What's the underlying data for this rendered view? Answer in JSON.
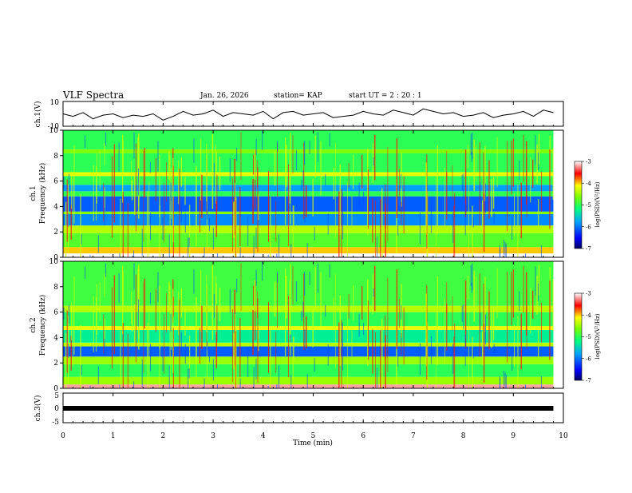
{
  "header": {
    "title": "VLF Spectra",
    "date": "Jan. 26, 2026",
    "station": "station= KAP",
    "start": "start  UT =   2 : 20 : 1"
  },
  "chart_data": [
    {
      "id": "ch1-waveform",
      "type": "line",
      "ylabel": "ch.1(V)",
      "ylim": [
        -10,
        10
      ],
      "yticks": [
        "10",
        "-10"
      ],
      "x": [
        0,
        0.2,
        0.4,
        0.6,
        0.8,
        1,
        1.2,
        1.4,
        1.6,
        1.8,
        2,
        2.2,
        2.4,
        2.6,
        2.8,
        3,
        3.2,
        3.4,
        3.6,
        3.8,
        4,
        4.2,
        4.4,
        4.6,
        4.8,
        5,
        5.2,
        5.4,
        5.6,
        5.8,
        6,
        6.2,
        6.4,
        6.6,
        6.8,
        7,
        7.2,
        7.4,
        7.6,
        7.8,
        8,
        8.2,
        8.4,
        8.6,
        8.8,
        9,
        9.2,
        9.4,
        9.6,
        9.8
      ],
      "values": [
        0,
        -2,
        1,
        -4,
        -1,
        0,
        -3,
        -1,
        -2,
        0,
        -5,
        -2,
        2,
        -1,
        0,
        3,
        -2,
        1,
        0,
        -1,
        2,
        -4,
        1,
        2,
        -1,
        0,
        1,
        -3,
        -2,
        -1,
        2,
        0,
        -1,
        3,
        1,
        -1,
        4,
        2,
        0,
        1,
        -2,
        -1,
        1,
        -3,
        -1,
        0,
        2,
        -2,
        3,
        1
      ]
    },
    {
      "id": "ch1-spectrogram",
      "type": "heatmap",
      "ylabel": "ch.1\nFrequency  (kHz)",
      "ylim": [
        0,
        10
      ],
      "yticks": [
        "0",
        "2",
        "4",
        "6",
        "8",
        "10"
      ],
      "colorbar": {
        "label": "log(PSD)(V²/Hz)",
        "ticks": [
          "-3",
          "-4",
          "-5",
          "-6",
          "-7"
        ],
        "range": [
          -7,
          -3
        ]
      },
      "bands": [
        {
          "from": 0,
          "to": 0.3,
          "level": -3.0
        },
        {
          "from": 0.3,
          "to": 0.8,
          "level": -4.0
        },
        {
          "from": 0.8,
          "to": 1.9,
          "level": -4.8
        },
        {
          "from": 1.9,
          "to": 2.5,
          "level": -4.4
        },
        {
          "from": 2.5,
          "to": 3.4,
          "level": -5.9
        },
        {
          "from": 3.4,
          "to": 3.6,
          "level": -4.6
        },
        {
          "from": 3.6,
          "to": 4.8,
          "level": -6.1
        },
        {
          "from": 4.8,
          "to": 5.2,
          "level": -5.0
        },
        {
          "from": 5.2,
          "to": 5.7,
          "level": -5.8
        },
        {
          "from": 5.7,
          "to": 6.4,
          "level": -5.0
        },
        {
          "from": 6.4,
          "to": 6.7,
          "level": -4.2
        },
        {
          "from": 6.7,
          "to": 8.2,
          "level": -5.0
        },
        {
          "from": 8.2,
          "to": 8.5,
          "level": -4.6
        },
        {
          "from": 8.5,
          "to": 10,
          "level": -5.0
        }
      ]
    },
    {
      "id": "ch2-spectrogram",
      "type": "heatmap",
      "ylabel": "ch.2\nFrequency  (kHz)",
      "ylim": [
        0,
        10
      ],
      "yticks": [
        "0",
        "2",
        "4",
        "6",
        "8",
        "10"
      ],
      "colorbar": {
        "label": "log(PSD)(V²/Hz)",
        "ticks": [
          "-3",
          "-4",
          "-5",
          "-6",
          "-7"
        ],
        "range": [
          -7,
          -3
        ]
      },
      "bands": [
        {
          "from": 0,
          "to": 0.3,
          "level": -3.2
        },
        {
          "from": 0.3,
          "to": 0.9,
          "level": -4.5
        },
        {
          "from": 0.9,
          "to": 1.9,
          "level": -5.0
        },
        {
          "from": 1.9,
          "to": 2.5,
          "level": -4.5
        },
        {
          "from": 2.5,
          "to": 3.3,
          "level": -6.1
        },
        {
          "from": 3.3,
          "to": 3.6,
          "level": -4.4
        },
        {
          "from": 3.6,
          "to": 4.6,
          "level": -5.3
        },
        {
          "from": 4.6,
          "to": 4.9,
          "level": -4.2
        },
        {
          "from": 4.9,
          "to": 6.0,
          "level": -5.0
        },
        {
          "from": 6.0,
          "to": 6.5,
          "level": -4.4
        },
        {
          "from": 6.5,
          "to": 10,
          "level": -4.9
        }
      ]
    },
    {
      "id": "ch3-waveform",
      "type": "line",
      "ylabel": "ch.3(V)",
      "ylim": [
        -5,
        5
      ],
      "yticks": [
        "5",
        "0",
        "-5"
      ],
      "x": [
        0,
        9.8
      ],
      "values": [
        0,
        0
      ]
    }
  ],
  "xaxis": {
    "label": "Time  (min)",
    "xlim": [
      0,
      10
    ],
    "ticks": [
      "0",
      "1",
      "2",
      "3",
      "4",
      "5",
      "6",
      "7",
      "8",
      "9",
      "10"
    ]
  }
}
